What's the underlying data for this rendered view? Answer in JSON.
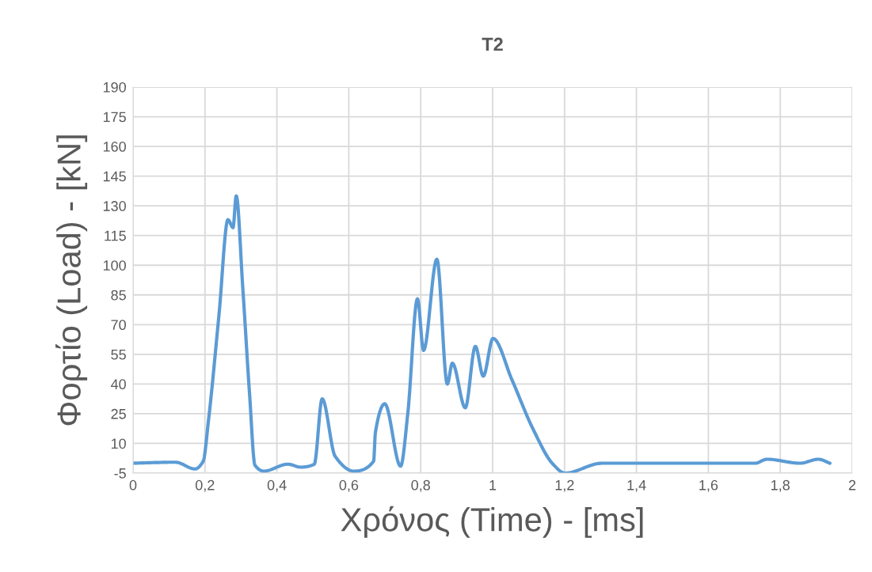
{
  "chart_data": {
    "type": "line",
    "title": "T2",
    "xlabel": "Χρόνος (Time) - [ms]",
    "ylabel": "Φορτίο (Load) - [kN]",
    "series": [
      {
        "color": "#5b9bd5",
        "x": [
          0,
          0.118,
          0.172,
          0.195,
          0.21,
          0.239,
          0.264,
          0.278,
          0.287,
          0.305,
          0.324,
          0.339,
          0.364,
          0.43,
          0.467,
          0.504,
          0.526,
          0.562,
          0.614,
          0.669,
          0.674,
          0.7,
          0.744,
          0.764,
          0.791,
          0.808,
          0.845,
          0.874,
          0.888,
          0.924,
          0.952,
          0.974,
          1.001,
          1.054,
          1.113,
          1.168,
          1.201,
          1.304,
          1.73,
          1.763,
          1.855,
          1.906,
          1.938
        ],
        "values": [
          0,
          0.5,
          -2.9,
          1,
          22,
          75,
          123,
          119,
          135,
          89,
          35,
          -1,
          -4,
          -0.5,
          -2,
          -0.5,
          32.5,
          3.5,
          -4,
          1,
          15.5,
          30,
          -1.5,
          25,
          83,
          57,
          103,
          40,
          50.5,
          28,
          59,
          44,
          63,
          42,
          17,
          -0.5,
          -5,
          0,
          0,
          2,
          0,
          2,
          0
        ]
      }
    ],
    "xlim": [
      0,
      2
    ],
    "xticks": [
      {
        "value": 0,
        "label": "0"
      },
      {
        "value": 0.2,
        "label": "0,2"
      },
      {
        "value": 0.4,
        "label": "0,4"
      },
      {
        "value": 0.6,
        "label": "0,6"
      },
      {
        "value": 0.8,
        "label": "0,8"
      },
      {
        "value": 1,
        "label": "1"
      },
      {
        "value": 1.2,
        "label": "1,2"
      },
      {
        "value": 1.4,
        "label": "1,4"
      },
      {
        "value": 1.6,
        "label": "1,6"
      },
      {
        "value": 1.8,
        "label": "1,8"
      },
      {
        "value": 2,
        "label": "2"
      }
    ],
    "ylim": [
      -5,
      190
    ],
    "yticks": [
      -5,
      10,
      25,
      40,
      55,
      70,
      85,
      100,
      115,
      130,
      145,
      160,
      175,
      190
    ],
    "grid": true,
    "marker": "none",
    "line_style": "solid"
  }
}
